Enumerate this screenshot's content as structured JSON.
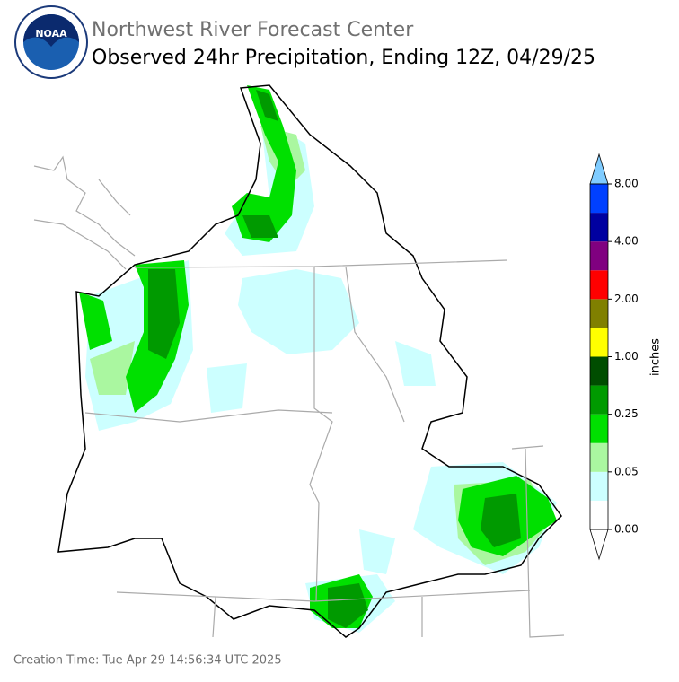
{
  "header": {
    "agency": "Northwest River Forecast Center",
    "title": "Observed 24hr Precipitation, Ending 12Z, 04/29/25",
    "logo": "NOAA"
  },
  "colorbar": {
    "label": "inches",
    "tick_labels": [
      "0.00",
      "0.05",
      "0.25",
      "1.00",
      "2.00",
      "4.00",
      "8.00"
    ],
    "colors": [
      "#ffffff",
      "#ccffff",
      "#aaf7a0",
      "#00e000",
      "#009a00",
      "#004d00",
      "#ffff00",
      "#808000",
      "#ff0000",
      "#800080",
      "#0000a0",
      "#0040ff"
    ],
    "over_color": "#80ccff",
    "under_color": "#ffffff"
  },
  "footer": "Creation Time: Tue Apr 29 14:56:34 UTC 2025"
}
